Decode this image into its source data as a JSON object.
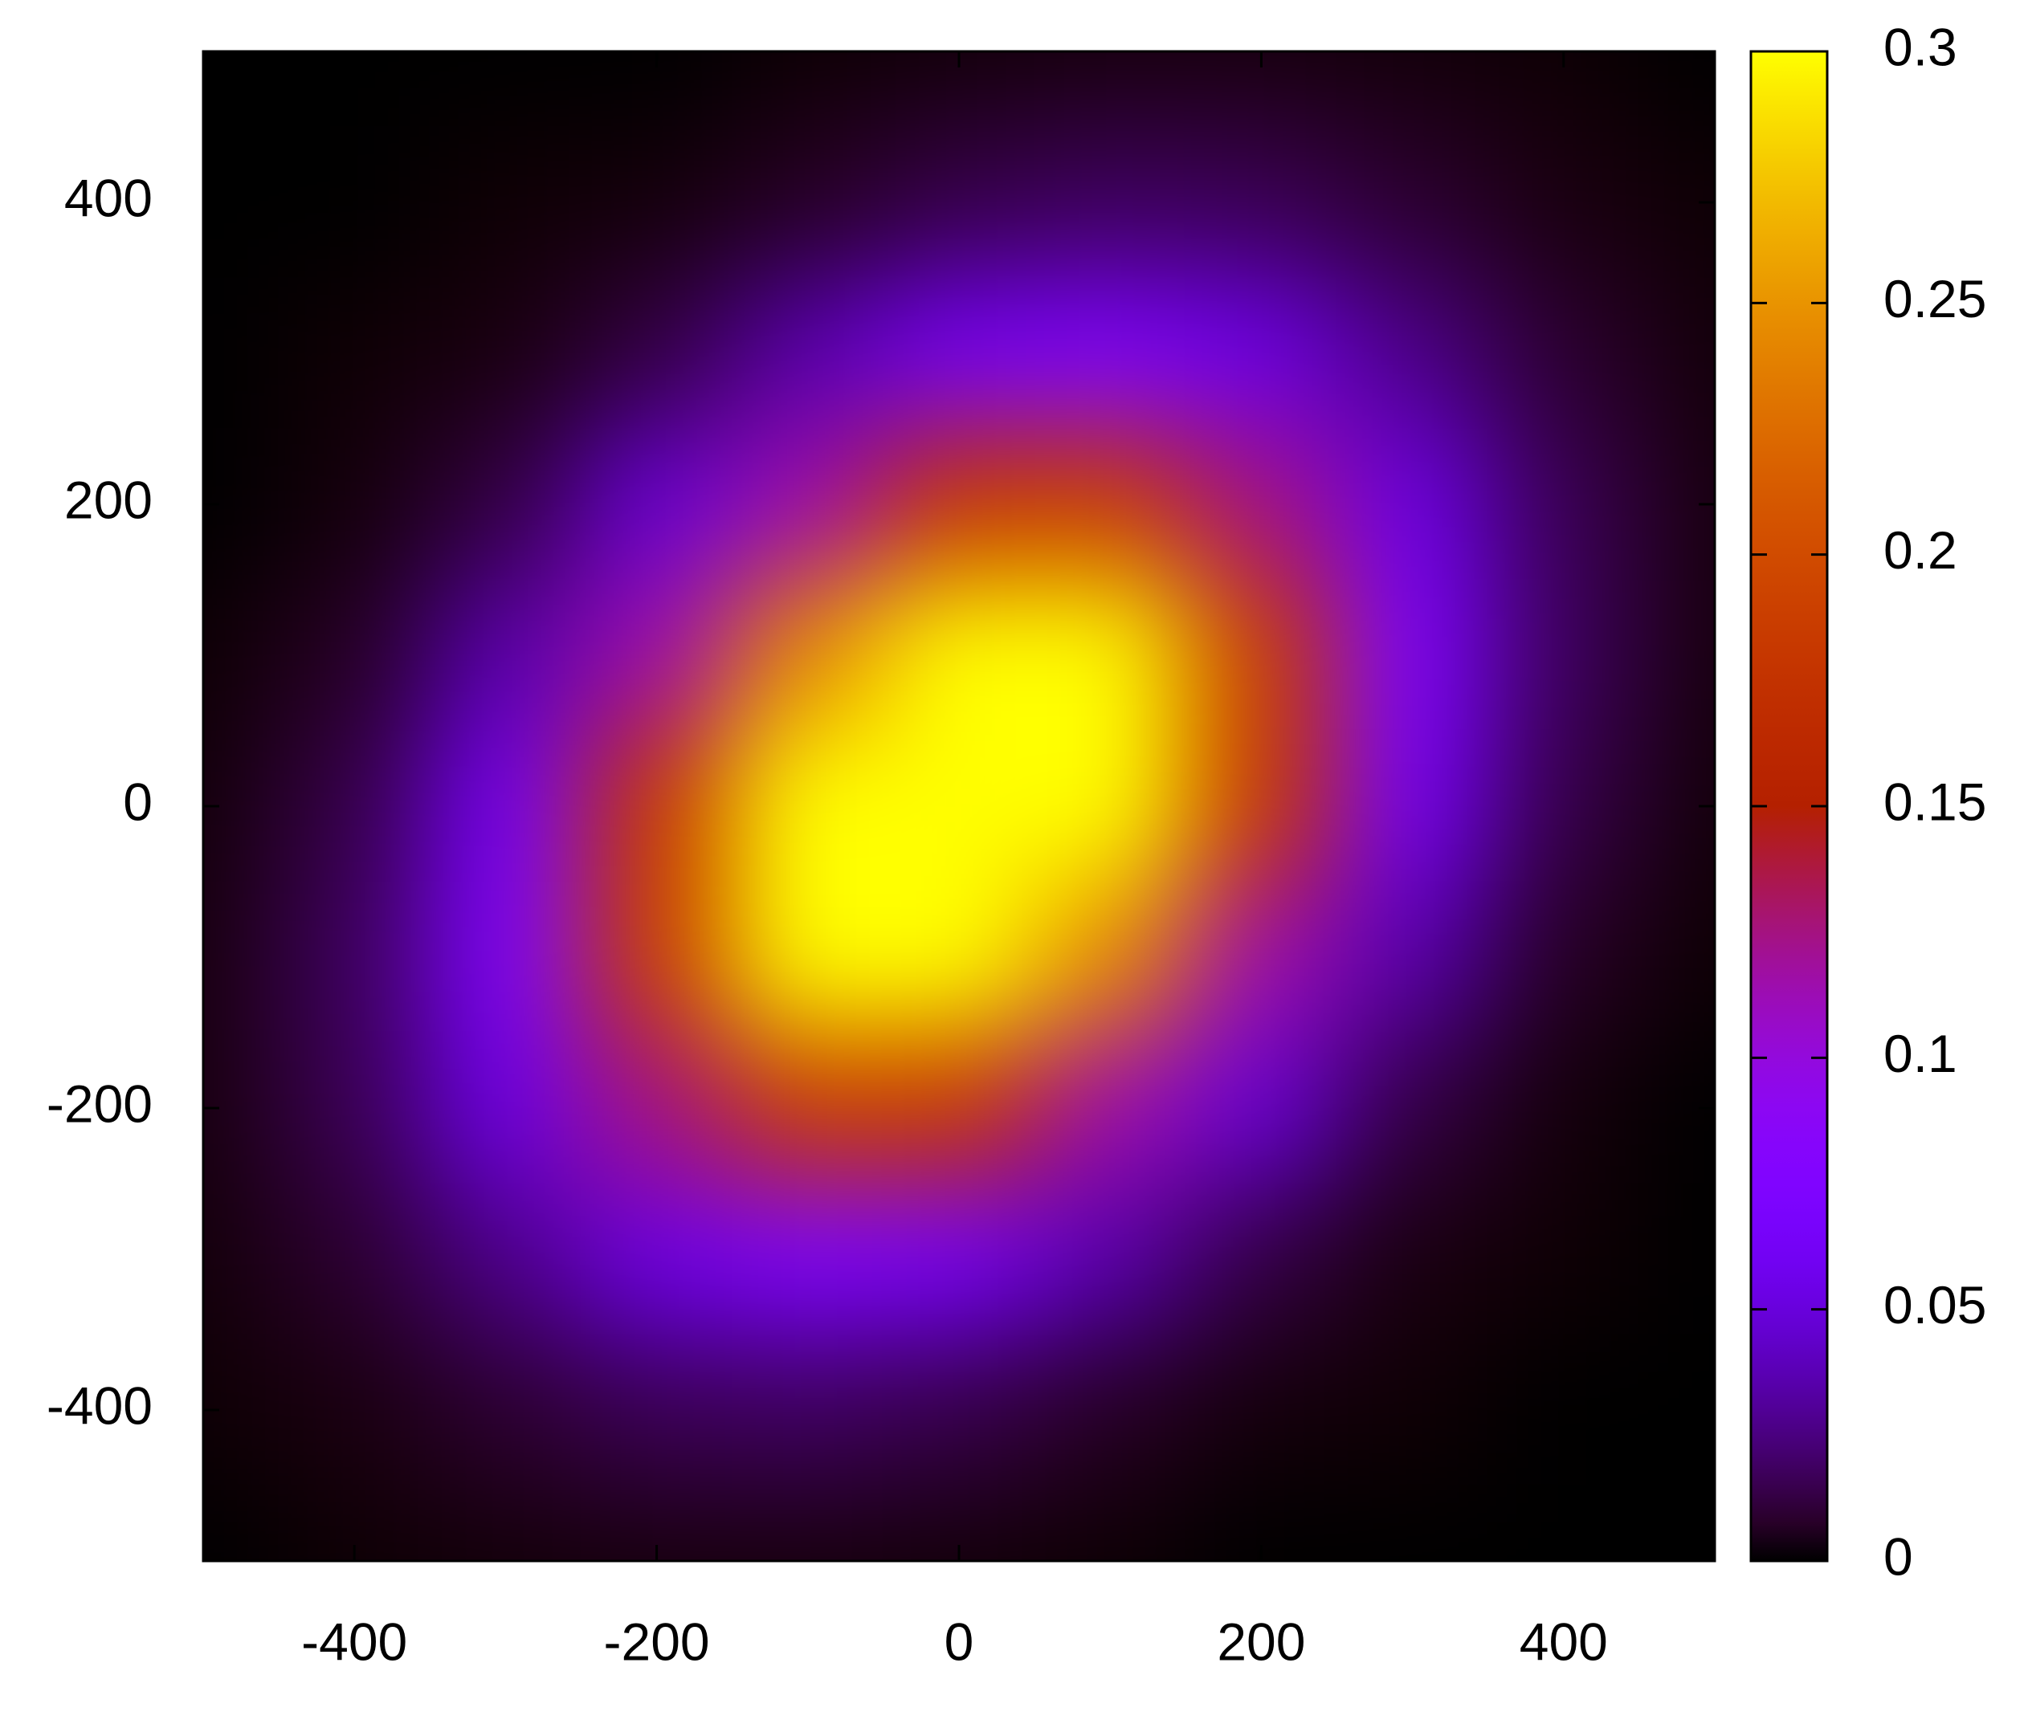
{
  "chart_data": {
    "type": "heatmap",
    "x": [
      -500,
      -400,
      -300,
      -200,
      -100,
      0,
      100,
      200,
      300,
      400,
      500
    ],
    "y": [
      500,
      400,
      300,
      200,
      100,
      0,
      -100,
      -200,
      -300,
      -400,
      -500
    ],
    "values": [
      [
        0,
        0,
        0,
        0,
        0.001,
        0.002,
        0.003,
        0.003,
        0.002,
        0.001,
        0
      ],
      [
        0,
        0,
        0.001,
        0.002,
        0.007,
        0.014,
        0.018,
        0.016,
        0.009,
        0.003,
        0.001
      ],
      [
        0,
        0.001,
        0.003,
        0.013,
        0.036,
        0.063,
        0.072,
        0.054,
        0.027,
        0.009,
        0.002
      ],
      [
        0,
        0.002,
        0.013,
        0.048,
        0.115,
        0.18,
        0.185,
        0.124,
        0.054,
        0.016,
        0.003
      ],
      [
        0.001,
        0.007,
        0.036,
        0.115,
        0.244,
        0.34,
        0.31,
        0.185,
        0.072,
        0.018,
        0.003
      ],
      [
        0.002,
        0.014,
        0.063,
        0.18,
        0.34,
        0.42,
        0.34,
        0.18,
        0.063,
        0.014,
        0.002
      ],
      [
        0.003,
        0.018,
        0.072,
        0.185,
        0.31,
        0.34,
        0.244,
        0.115,
        0.036,
        0.007,
        0.001
      ],
      [
        0.003,
        0.016,
        0.054,
        0.124,
        0.185,
        0.18,
        0.115,
        0.048,
        0.013,
        0.002,
        0
      ],
      [
        0.002,
        0.009,
        0.027,
        0.054,
        0.072,
        0.063,
        0.036,
        0.013,
        0.003,
        0.001,
        0
      ],
      [
        0.001,
        0.003,
        0.009,
        0.016,
        0.018,
        0.014,
        0.007,
        0.002,
        0.001,
        0,
        0
      ],
      [
        0,
        0.001,
        0.002,
        0.003,
        0.003,
        0.002,
        0.001,
        0,
        0,
        0,
        0
      ]
    ],
    "colormap": "gnuplot",
    "xlim": [
      -500,
      500
    ],
    "ylim": [
      -500,
      500
    ],
    "xticks": [
      -400,
      -200,
      0,
      200,
      400
    ],
    "yticks": [
      -400,
      -200,
      0,
      200,
      400
    ],
    "cblim": [
      0,
      0.3
    ],
    "cbticks": [
      0,
      0.05,
      0.1,
      0.15,
      0.2,
      0.25,
      0.3
    ]
  }
}
